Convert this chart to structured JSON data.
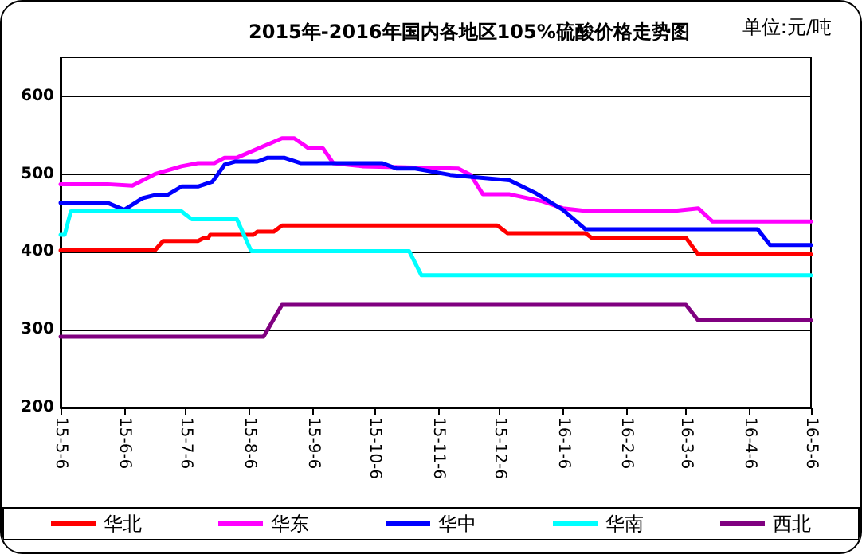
{
  "chart_data": {
    "type": "line",
    "title": "2015年-2016年国内各地区105%硫酸价格走势图",
    "annotations": [
      "单位:元/吨"
    ],
    "xlim": [
      "2015-05-06",
      "2016-05-06"
    ],
    "xticks": [
      {
        "value": "2015-05-06",
        "label": "15-5-6"
      },
      {
        "value": "2015-06-06",
        "label": "15-6-6"
      },
      {
        "value": "2015-07-06",
        "label": "15-7-6"
      },
      {
        "value": "2015-08-06",
        "label": "15-8-6"
      },
      {
        "value": "2015-09-06",
        "label": "15-9-6"
      },
      {
        "value": "2015-10-06",
        "label": "15-10-6"
      },
      {
        "value": "2015-11-06",
        "label": "15-11-6"
      },
      {
        "value": "2015-12-06",
        "label": "15-12-6"
      },
      {
        "value": "2016-01-06",
        "label": "16-1-6"
      },
      {
        "value": "2016-02-06",
        "label": "16-2-6"
      },
      {
        "value": "2016-03-06",
        "label": "16-3-6"
      },
      {
        "value": "2016-04-06",
        "label": "16-4-6"
      },
      {
        "value": "2016-05-06",
        "label": "16-5-6"
      }
    ],
    "ylim": [
      200,
      650
    ],
    "yticks": [
      200,
      300,
      400,
      500,
      600
    ],
    "grid": "y",
    "legend": "bottom",
    "marker": "none",
    "line_style": "solid",
    "series": [
      {
        "name": "华北",
        "color": "#ff0000",
        "x": [
          "2015-05-06",
          "2015-06-21",
          "2015-06-25",
          "2015-07-12",
          "2015-07-15",
          "2015-07-17",
          "2015-07-18",
          "2015-08-08",
          "2015-08-10",
          "2015-08-18",
          "2015-08-22",
          "2015-12-05",
          "2015-12-10",
          "2016-01-17",
          "2016-01-20",
          "2016-03-06",
          "2016-03-12",
          "2016-05-06"
        ],
        "values": [
          402,
          402,
          414,
          414,
          418,
          418,
          422,
          422,
          426,
          426,
          434,
          434,
          424,
          424,
          418,
          418,
          397,
          397
        ]
      },
      {
        "name": "华东",
        "color": "#ff00ff",
        "x": [
          "2015-05-06",
          "2015-05-29",
          "2015-06-10",
          "2015-06-21",
          "2015-07-04",
          "2015-07-12",
          "2015-07-20",
          "2015-07-25",
          "2015-07-31",
          "2015-08-22",
          "2015-08-28",
          "2015-09-04",
          "2015-09-11",
          "2015-09-16",
          "2015-09-30",
          "2015-11-16",
          "2015-11-22",
          "2015-11-28",
          "2015-12-11",
          "2015-12-27",
          "2016-01-06",
          "2016-01-19",
          "2016-02-27",
          "2016-03-12",
          "2016-03-19",
          "2016-05-06"
        ],
        "values": [
          487,
          487,
          485,
          500,
          510,
          514,
          514,
          521,
          521,
          546,
          546,
          533,
          533,
          514,
          510,
          507,
          499,
          474,
          474,
          465,
          456,
          452,
          452,
          456,
          439,
          439
        ]
      },
      {
        "name": "华中",
        "color": "#0000ff",
        "x": [
          "2015-05-06",
          "2015-05-29",
          "2015-06-06",
          "2015-06-15",
          "2015-06-21",
          "2015-06-27",
          "2015-07-04",
          "2015-07-12",
          "2015-07-19",
          "2015-07-25",
          "2015-07-30",
          "2015-08-10",
          "2015-08-15",
          "2015-08-23",
          "2015-08-31",
          "2015-10-10",
          "2015-10-17",
          "2015-10-26",
          "2015-11-12",
          "2015-11-28",
          "2015-12-11",
          "2015-12-24",
          "2016-01-06",
          "2016-01-17",
          "2016-04-10",
          "2016-04-16",
          "2016-05-06"
        ],
        "values": [
          463,
          463,
          454,
          469,
          473,
          473,
          484,
          484,
          490,
          512,
          516,
          516,
          521,
          521,
          514,
          514,
          507,
          507,
          499,
          495,
          492,
          475,
          454,
          429,
          429,
          409,
          409
        ]
      },
      {
        "name": "华南",
        "color": "#00ffff",
        "x": [
          "2015-05-06",
          "2015-05-08",
          "2015-05-11",
          "2015-07-04",
          "2015-07-09",
          "2015-07-31",
          "2015-08-07",
          "2015-10-23",
          "2015-10-29",
          "2016-05-06"
        ],
        "values": [
          422,
          422,
          452,
          452,
          442,
          442,
          401,
          401,
          370,
          370
        ]
      },
      {
        "name": "西北",
        "color": "#800080",
        "x": [
          "2015-05-06",
          "2015-08-13",
          "2015-08-22",
          "2016-03-06",
          "2016-03-12",
          "2016-05-06"
        ],
        "values": [
          291,
          291,
          332,
          332,
          312,
          312
        ]
      }
    ]
  }
}
